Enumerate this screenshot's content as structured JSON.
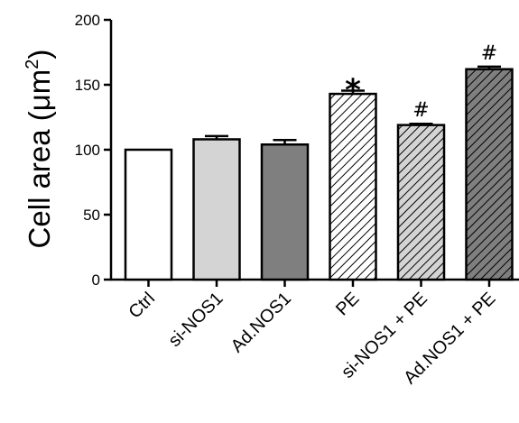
{
  "chart_data": {
    "type": "bar",
    "title": "",
    "xlabel": "",
    "ylabel": {
      "prefix": "Cell area (",
      "unit": "μm",
      "superscript": "2",
      "suffix": ")"
    },
    "ylim": [
      0,
      200
    ],
    "yticks": [
      "0",
      "50",
      "100",
      "150",
      "200"
    ],
    "ytick_values": [
      0,
      50,
      100,
      150,
      200
    ],
    "categories": [
      "Ctrl",
      "si-NOS1",
      "Ad.NOS1",
      "PE",
      "si-NOS1 + PE",
      "Ad.NOS1 + PE"
    ],
    "values": [
      100,
      108,
      104,
      143,
      119,
      162
    ],
    "errors": [
      0,
      2.5,
      3.5,
      2.5,
      1,
      2
    ],
    "bar_styles": [
      {
        "fill": "#ffffff",
        "hatch": false
      },
      {
        "fill": "#d4d4d4",
        "hatch": false
      },
      {
        "fill": "#7f7f7f",
        "hatch": false
      },
      {
        "fill": "#ffffff",
        "hatch": true,
        "hatch_color": "#000000"
      },
      {
        "fill": "#d4d4d4",
        "hatch": true,
        "hatch_color": "#000000"
      },
      {
        "fill": "#7f7f7f",
        "hatch": true,
        "hatch_color": "#000000"
      }
    ],
    "annotations": [
      "",
      "",
      "",
      "*",
      "#",
      "#"
    ],
    "grid": false,
    "legend": "none"
  }
}
